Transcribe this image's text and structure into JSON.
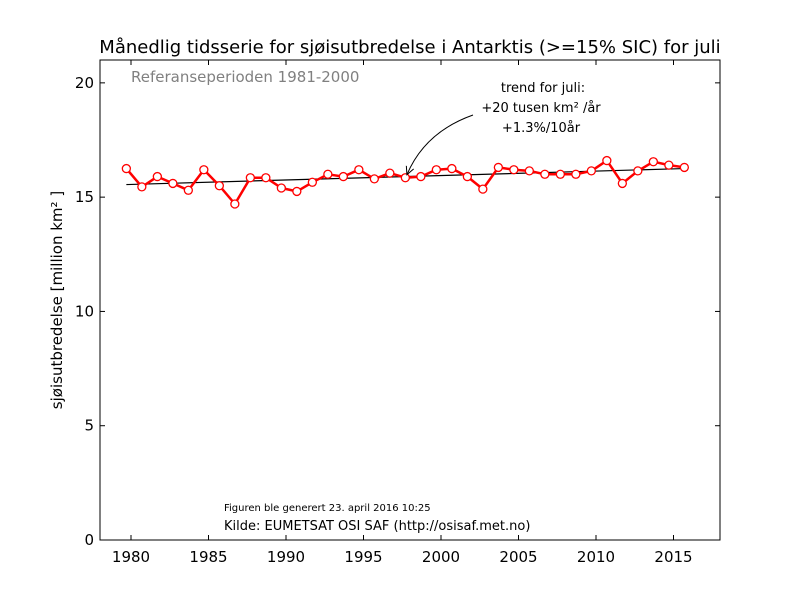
{
  "chart_data": {
    "type": "line",
    "title": "Månedlig tidsserie for sjøisutbredelse i Antarktis (>=15% SIC) for juli",
    "subtitle": "Referanseperioden 1981-2000",
    "xlabel": "",
    "ylabel": "sjøisutbredelse [million km² ]",
    "xlim": [
      1978,
      2018
    ],
    "ylim": [
      0,
      21
    ],
    "xticks": [
      1980,
      1985,
      1990,
      1995,
      2000,
      2005,
      2010,
      2015
    ],
    "yticks": [
      0,
      5,
      10,
      15,
      20
    ],
    "grid": false,
    "series_color": "#ff0000",
    "trend_color": "#000000",
    "x": [
      1979.7,
      1980.7,
      1981.7,
      1982.7,
      1983.7,
      1984.7,
      1985.7,
      1986.7,
      1987.7,
      1988.7,
      1989.7,
      1990.7,
      1991.7,
      1992.7,
      1993.7,
      1994.7,
      1995.7,
      1996.7,
      1997.7,
      1998.7,
      1999.7,
      2000.7,
      2001.7,
      2002.7,
      2003.7,
      2004.7,
      2005.7,
      2006.7,
      2007.7,
      2008.7,
      2009.7,
      2010.7,
      2011.7,
      2012.7,
      2013.7,
      2014.7,
      2015.7
    ],
    "series": [
      {
        "values": [
          16.25,
          15.45,
          15.9,
          15.6,
          15.3,
          16.2,
          15.5,
          14.7,
          15.85,
          15.85,
          15.4,
          15.25,
          15.65,
          16.0,
          15.9,
          16.2,
          15.8,
          16.05,
          15.85,
          15.9,
          16.2,
          16.25,
          15.9,
          15.35,
          16.3,
          16.2,
          16.15,
          16.0,
          16.0,
          16.0,
          16.15,
          16.6,
          15.6,
          16.15,
          16.55,
          16.4,
          16.3
        ]
      }
    ],
    "trend": {
      "x": [
        1979.7,
        2015.7
      ],
      "y": [
        15.55,
        16.25
      ]
    },
    "annotation": {
      "lines": [
        "trend for juli:",
        "+20 tusen km² /år",
        "+1.3%/10år"
      ],
      "arrow_to": [
        1997.8,
        15.85
      ]
    },
    "footnote_small": "Figuren ble generert 23. april 2016 10:25",
    "footnote_source": "Kilde: EUMETSAT OSI SAF (http://osisaf.met.no)"
  }
}
